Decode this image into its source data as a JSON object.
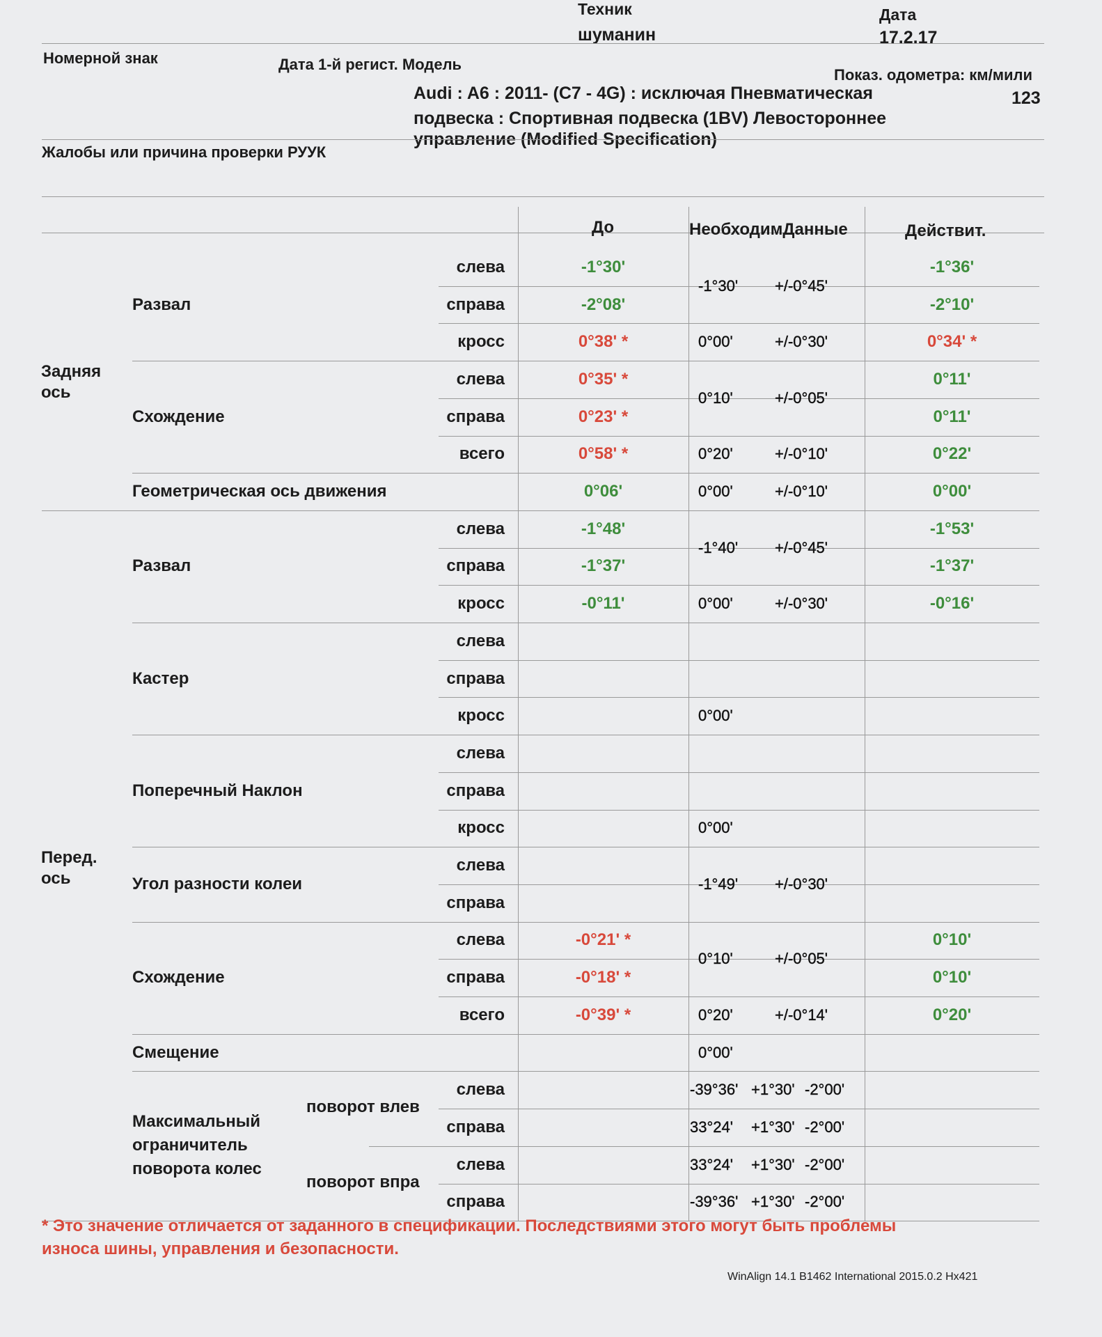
{
  "header": {
    "technician_label": "Техник",
    "technician": "шуманин",
    "date_label": "Дата",
    "date": "17.2.17",
    "plate_label": "Номерной знак",
    "regdate_model_label": "Дата 1-й регист. Модель",
    "odometer_label": "Показ. одометра: км/мили",
    "odometer": "123",
    "model_lines": [
      "Audi : A6 : 2011-  (C7 - 4G) : исключая Пневматическая",
      "подвеска : Спортивная подвеска (1BV) Левостороннее",
      "управление (Modified Specification)"
    ],
    "complaint_label": "Жалобы или причина проверки РУУК"
  },
  "columns": {
    "before": "До",
    "spec": "НеобходимДанные",
    "actual": "Действит."
  },
  "colors": {
    "in_spec": "#3e8d3c",
    "out_of_spec": "#d8493b"
  },
  "axles": [
    {
      "label": "Задняя ось",
      "groups": [
        {
          "label": "Развал",
          "items": [
            {
              "sub": "слева",
              "before": "-1°30'",
              "before_out": false,
              "actual": "-1°36'",
              "actual_out": false
            },
            {
              "sub": "справа",
              "before": "-2°08'",
              "before_out": false,
              "actual": "-2°10'",
              "actual_out": false
            },
            {
              "sub": "кросс",
              "before": "0°38' *",
              "before_out": true,
              "actual": "0°34' *",
              "actual_out": true
            }
          ],
          "specs": [
            {
              "value": "-1°30'",
              "tol": "+/-0°45'",
              "span": 2
            },
            {
              "value": "0°00'",
              "tol": "+/-0°30'",
              "span": 1
            }
          ]
        },
        {
          "label": "Схождение",
          "items": [
            {
              "sub": "слева",
              "before": "0°35' *",
              "before_out": true,
              "actual": "0°11'",
              "actual_out": false
            },
            {
              "sub": "справа",
              "before": "0°23' *",
              "before_out": true,
              "actual": "0°11'",
              "actual_out": false
            },
            {
              "sub": "всего",
              "before": "0°58' *",
              "before_out": true,
              "actual": "0°22'",
              "actual_out": false
            }
          ],
          "specs": [
            {
              "value": "0°10'",
              "tol": "+/-0°05'",
              "span": 2
            },
            {
              "value": "0°20'",
              "tol": "+/-0°10'",
              "span": 1
            }
          ]
        },
        {
          "label": "Геометрическая ось движения",
          "items": [
            {
              "sub": "",
              "before": "0°06'",
              "before_out": false,
              "actual": "0°00'",
              "actual_out": false
            }
          ],
          "specs": [
            {
              "value": "0°00'",
              "tol": "+/-0°10'",
              "span": 1
            }
          ]
        }
      ]
    },
    {
      "label": "Перед. ось",
      "groups": [
        {
          "label": "Развал",
          "items": [
            {
              "sub": "слева",
              "before": "-1°48'",
              "before_out": false,
              "actual": "-1°53'",
              "actual_out": false
            },
            {
              "sub": "справа",
              "before": "-1°37'",
              "before_out": false,
              "actual": "-1°37'",
              "actual_out": false
            },
            {
              "sub": "кросс",
              "before": "-0°11'",
              "before_out": false,
              "actual": "-0°16'",
              "actual_out": false
            }
          ],
          "specs": [
            {
              "value": "-1°40'",
              "tol": "+/-0°45'",
              "span": 2
            },
            {
              "value": "0°00'",
              "tol": "+/-0°30'",
              "span": 1
            }
          ]
        },
        {
          "label": "Кастер",
          "items": [
            {
              "sub": "слева",
              "before": "",
              "actual": ""
            },
            {
              "sub": "справа",
              "before": "",
              "actual": ""
            },
            {
              "sub": "кросс",
              "before": "",
              "actual": ""
            }
          ],
          "specs": [
            {
              "value": "",
              "tol": "",
              "span": 2
            },
            {
              "value": "0°00'",
              "tol": "",
              "span": 1
            }
          ]
        },
        {
          "label": "Поперечный Наклон",
          "items": [
            {
              "sub": "слева",
              "before": "",
              "actual": ""
            },
            {
              "sub": "справа",
              "before": "",
              "actual": ""
            },
            {
              "sub": "кросс",
              "before": "",
              "actual": ""
            }
          ],
          "specs": [
            {
              "value": "",
              "tol": "",
              "span": 2
            },
            {
              "value": "0°00'",
              "tol": "",
              "span": 1
            }
          ]
        },
        {
          "label": "Угол разности колеи",
          "items": [
            {
              "sub": "слева",
              "before": "",
              "actual": ""
            },
            {
              "sub": "справа",
              "before": "",
              "actual": ""
            }
          ],
          "specs": [
            {
              "value": "-1°49'",
              "tol": "+/-0°30'",
              "span": 2
            }
          ]
        },
        {
          "label": "Схождение",
          "items": [
            {
              "sub": "слева",
              "before": "-0°21' *",
              "before_out": true,
              "actual": "0°10'",
              "actual_out": false
            },
            {
              "sub": "справа",
              "before": "-0°18' *",
              "before_out": true,
              "actual": "0°10'",
              "actual_out": false
            },
            {
              "sub": "всего",
              "before": "-0°39' *",
              "before_out": true,
              "actual": "0°20'",
              "actual_out": false
            }
          ],
          "specs": [
            {
              "value": "0°10'",
              "tol": "+/-0°05'",
              "span": 2
            },
            {
              "value": "0°20'",
              "tol": "+/-0°14'",
              "span": 1
            }
          ]
        },
        {
          "label": "Смещение",
          "items": [
            {
              "sub": "",
              "before": "",
              "actual": ""
            }
          ],
          "specs": [
            {
              "value": "0°00'",
              "tol": "",
              "span": 1
            }
          ]
        },
        {
          "label": "Максимальный ограничитель поворота колес",
          "turns": [
            "поворот влев",
            "поворот впра"
          ],
          "items": [
            {
              "sub": "слева",
              "before": "",
              "actual": ""
            },
            {
              "sub": "справа",
              "before": "",
              "actual": ""
            },
            {
              "sub": "слева",
              "before": "",
              "actual": ""
            },
            {
              "sub": "справа",
              "before": "",
              "actual": ""
            }
          ],
          "specs": [
            {
              "value": "-39°36'",
              "tol": "+1°30'",
              "tol2": "-2°00'",
              "span": 1
            },
            {
              "value": "33°24'",
              "tol": "+1°30'",
              "tol2": "-2°00'",
              "span": 1
            },
            {
              "value": "33°24'",
              "tol": "+1°30'",
              "tol2": "-2°00'",
              "span": 1
            },
            {
              "value": "-39°36'",
              "tol": "+1°30'",
              "tol2": "-2°00'",
              "span": 1
            }
          ]
        }
      ]
    }
  ],
  "note": "* Это значение отличается от заданного в спецификации. Последствиями этого могут быть проблемы износа шины, управления и безопасности.",
  "footer": "WinAlign 14.1 B1462  International 2015.0.2 Hx421"
}
